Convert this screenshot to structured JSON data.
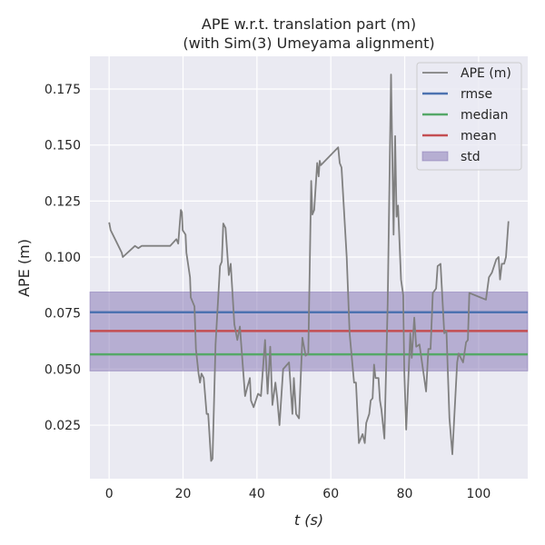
{
  "chart_data": {
    "type": "line",
    "title": [
      "APE w.r.t. translation part (m)",
      "(with Sim(3) Umeyama alignment)"
    ],
    "xlabel": "t (s)",
    "ylabel": "APE (m)",
    "xlim": [
      -5.2,
      113.3
    ],
    "ylim": [
      0.0011,
      0.1896
    ],
    "xticks": [
      0,
      20,
      40,
      60,
      80,
      100
    ],
    "yticks": [
      0.025,
      0.05,
      0.075,
      0.1,
      0.125,
      0.15,
      0.175
    ],
    "ytick_labels": [
      "0.025",
      "0.050",
      "0.075",
      "0.100",
      "0.125",
      "0.150",
      "0.175"
    ],
    "grid": true,
    "legend_position": "top-right",
    "series": [
      {
        "name": "APE (m)",
        "color": "#808080",
        "x": [
          0.0,
          0.4,
          3.4,
          3.7,
          7.0,
          7.9,
          8.8,
          16.5,
          18.2,
          18.7,
          19.4,
          19.7,
          19.9,
          20.7,
          20.9,
          21.9,
          22.1,
          23.1,
          23.5,
          24.2,
          24.6,
          25.0,
          25.6,
          26.4,
          26.8,
          27.6,
          28.0,
          28.8,
          30.0,
          30.5,
          30.9,
          31.5,
          32.4,
          32.9,
          33.9,
          34.7,
          35.4,
          36.2,
          36.8,
          37.4,
          38.1,
          38.4,
          39.1,
          40.3,
          41.1,
          42.2,
          42.9,
          43.6,
          44.2,
          45.0,
          45.5,
          46.1,
          47.1,
          48.7,
          49.6,
          50.0,
          50.6,
          51.4,
          52.3,
          53.2,
          53.9,
          54.7,
          55.0,
          55.5,
          56.3,
          56.7,
          57.0,
          57.3,
          62.0,
          62.4,
          62.9,
          64.3,
          65.1,
          66.3,
          66.8,
          67.6,
          68.6,
          69.2,
          69.6,
          70.4,
          70.8,
          71.3,
          71.7,
          72.1,
          72.9,
          73.3,
          73.7,
          74.5,
          75.4,
          76.3,
          77.0,
          77.4,
          77.8,
          78.2,
          79.0,
          79.6,
          79.9,
          80.4,
          81.5,
          81.9,
          82.6,
          83.1,
          84.0,
          85.8,
          86.4,
          87.0,
          87.6,
          88.5,
          88.9,
          89.7,
          90.7,
          91.3,
          92.1,
          92.9,
          94.2,
          94.6,
          95.8,
          96.6,
          97.1,
          97.5,
          102.0,
          102.8,
          103.6,
          104.8,
          105.4,
          105.8,
          106.3,
          106.9,
          107.4,
          108.1
        ],
        "y": [
          0.1155,
          0.112,
          0.102,
          0.1,
          0.105,
          0.104,
          0.105,
          0.105,
          0.108,
          0.106,
          0.121,
          0.12,
          0.112,
          0.11,
          0.102,
          0.091,
          0.082,
          0.078,
          0.059,
          0.048,
          0.044,
          0.048,
          0.046,
          0.03,
          0.03,
          0.009,
          0.01,
          0.061,
          0.096,
          0.098,
          0.115,
          0.113,
          0.092,
          0.097,
          0.07,
          0.063,
          0.069,
          0.051,
          0.038,
          0.042,
          0.046,
          0.036,
          0.033,
          0.039,
          0.038,
          0.063,
          0.039,
          0.06,
          0.034,
          0.044,
          0.037,
          0.025,
          0.05,
          0.053,
          0.03,
          0.046,
          0.03,
          0.028,
          0.064,
          0.056,
          0.057,
          0.134,
          0.119,
          0.121,
          0.142,
          0.136,
          0.143,
          0.141,
          0.149,
          0.142,
          0.14,
          0.1,
          0.066,
          0.044,
          0.044,
          0.017,
          0.021,
          0.017,
          0.026,
          0.03,
          0.036,
          0.037,
          0.052,
          0.046,
          0.046,
          0.036,
          0.032,
          0.019,
          0.079,
          0.1815,
          0.11,
          0.154,
          0.118,
          0.123,
          0.09,
          0.083,
          0.049,
          0.023,
          0.066,
          0.055,
          0.073,
          0.06,
          0.061,
          0.04,
          0.059,
          0.059,
          0.084,
          0.086,
          0.096,
          0.097,
          0.066,
          0.067,
          0.028,
          0.012,
          0.053,
          0.057,
          0.053,
          0.062,
          0.063,
          0.084,
          0.081,
          0.091,
          0.093,
          0.099,
          0.1,
          0.09,
          0.097,
          0.097,
          0.1,
          0.116
        ]
      }
    ],
    "stats": {
      "rmse": {
        "name": "rmse",
        "value": 0.0754,
        "color": "#4c72b0"
      },
      "median": {
        "name": "median",
        "value": 0.0566,
        "color": "#55a868"
      },
      "mean": {
        "name": "mean",
        "value": 0.067,
        "color": "#c44e52"
      },
      "std": {
        "name": "std",
        "range": [
          0.0492,
          0.0844
        ],
        "color": "#8172b2"
      }
    },
    "legend": [
      "APE (m)",
      "rmse",
      "median",
      "mean",
      "std"
    ]
  }
}
